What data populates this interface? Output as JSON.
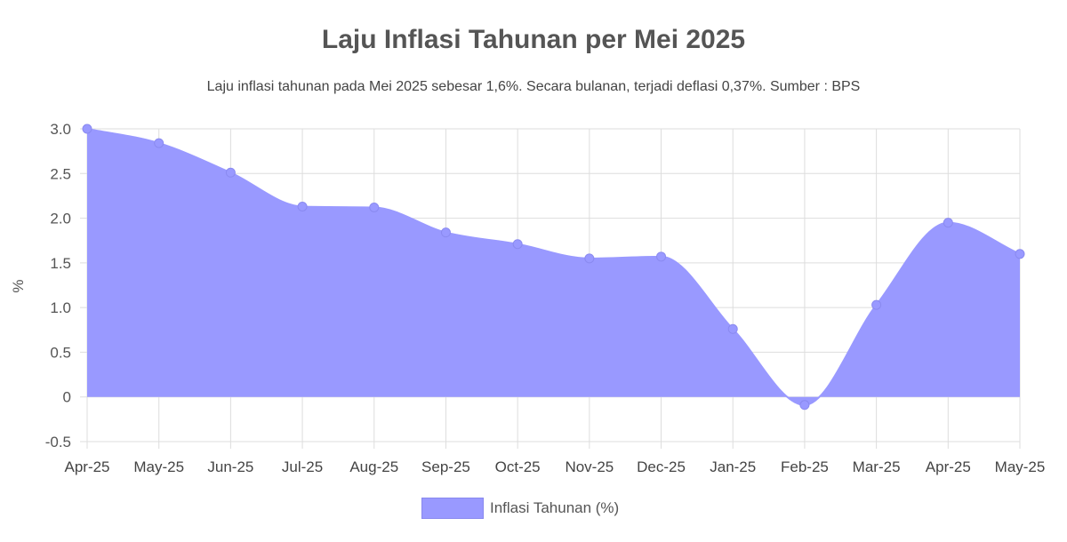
{
  "chart_data": {
    "type": "area",
    "title": "Laju Inflasi Tahunan per Mei 2025",
    "subtitle": "Laju inflasi tahunan pada Mei 2025 sebesar 1,6%. Secara bulanan, terjadi deflasi 0,37%. Sumber : BPS",
    "ylabel": "%",
    "xlabel": "",
    "categories": [
      "Apr-25",
      "May-25",
      "Jun-25",
      "Jul-25",
      "Aug-25",
      "Sep-25",
      "Oct-25",
      "Nov-25",
      "Dec-25",
      "Jan-25",
      "Feb-25",
      "Mar-25",
      "Apr-25",
      "May-25"
    ],
    "series": [
      {
        "name": "Inflasi Tahunan (%)",
        "values": [
          3.0,
          2.84,
          2.51,
          2.13,
          2.12,
          1.84,
          1.71,
          1.55,
          1.57,
          0.76,
          -0.09,
          1.03,
          1.95,
          1.6
        ],
        "color": "#9999ff"
      }
    ],
    "ylim": [
      -0.5,
      3.0
    ],
    "yticks": [
      "3.0",
      "2.5",
      "2.0",
      "1.5",
      "1.0",
      "0.5",
      "0",
      "-0.5"
    ],
    "grid": true,
    "legend": "bottom"
  }
}
